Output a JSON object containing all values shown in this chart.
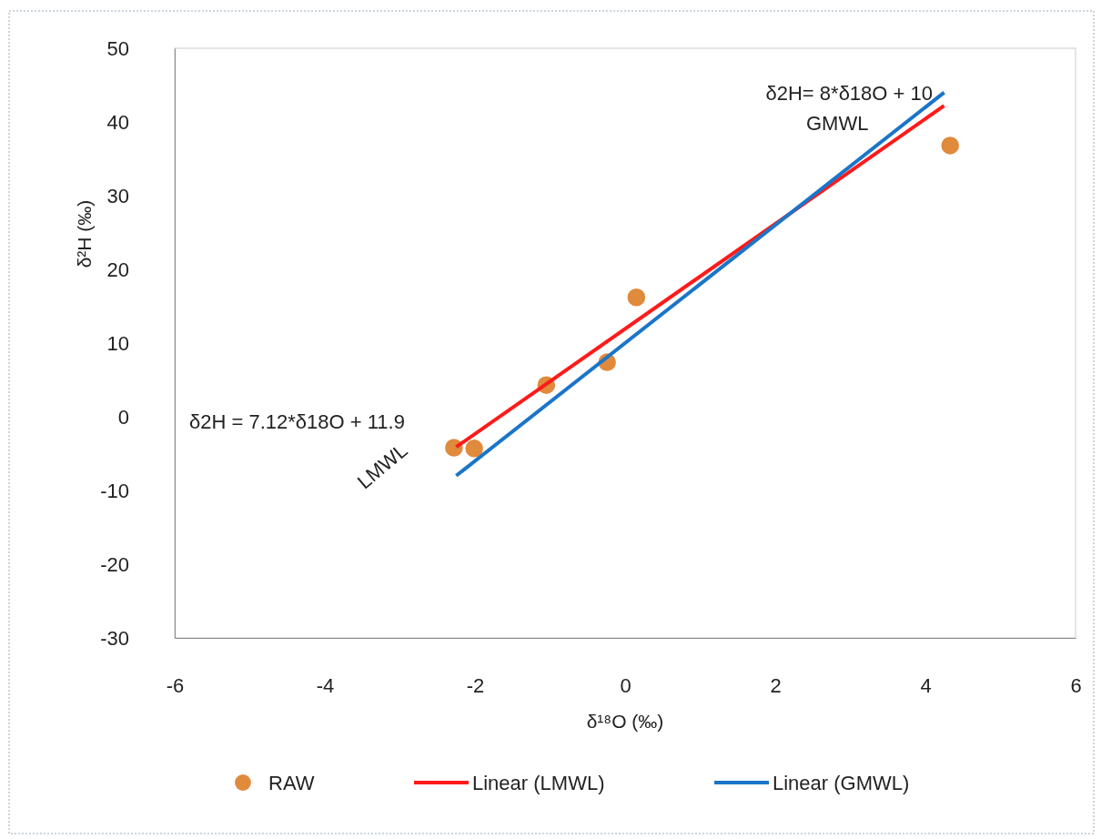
{
  "chart_data": {
    "type": "scatter",
    "xlabel": "δ¹⁸O (‰)",
    "ylabel": "δ²H (‰)",
    "xlim": [
      -6,
      6
    ],
    "xticks": [
      -6,
      -4,
      -2,
      0,
      2,
      4,
      6
    ],
    "ylim": [
      -30,
      50
    ],
    "yticks": [
      -30,
      -20,
      -10,
      0,
      10,
      20,
      30,
      40,
      50
    ],
    "grid": false,
    "legend": "bottom",
    "series": [
      {
        "name": "RAW",
        "marker": "circle",
        "color": "#e08a3c",
        "x": [
          -2.28,
          -2.01,
          -1.05,
          -0.24,
          0.15,
          4.33
        ],
        "values": [
          -4.2,
          -4.3,
          4.3,
          7.4,
          16.2,
          36.8
        ]
      },
      {
        "name": "Linear (LMWL)",
        "type": "line",
        "color": "#ff1a1a",
        "x": [
          -2.25,
          4.25
        ],
        "values": [
          -4.1,
          42.2
        ]
      },
      {
        "name": "Linear (GMWL)",
        "type": "line",
        "color": "#1a75c9",
        "x": [
          -2.25,
          4.25
        ],
        "values": [
          -8,
          44
        ]
      }
    ],
    "annotations": [
      "δ2H = 7.12*δ18O + 11.9",
      "LMWL",
      "δ2H= 8*δ18O + 10",
      "GMWL"
    ]
  }
}
